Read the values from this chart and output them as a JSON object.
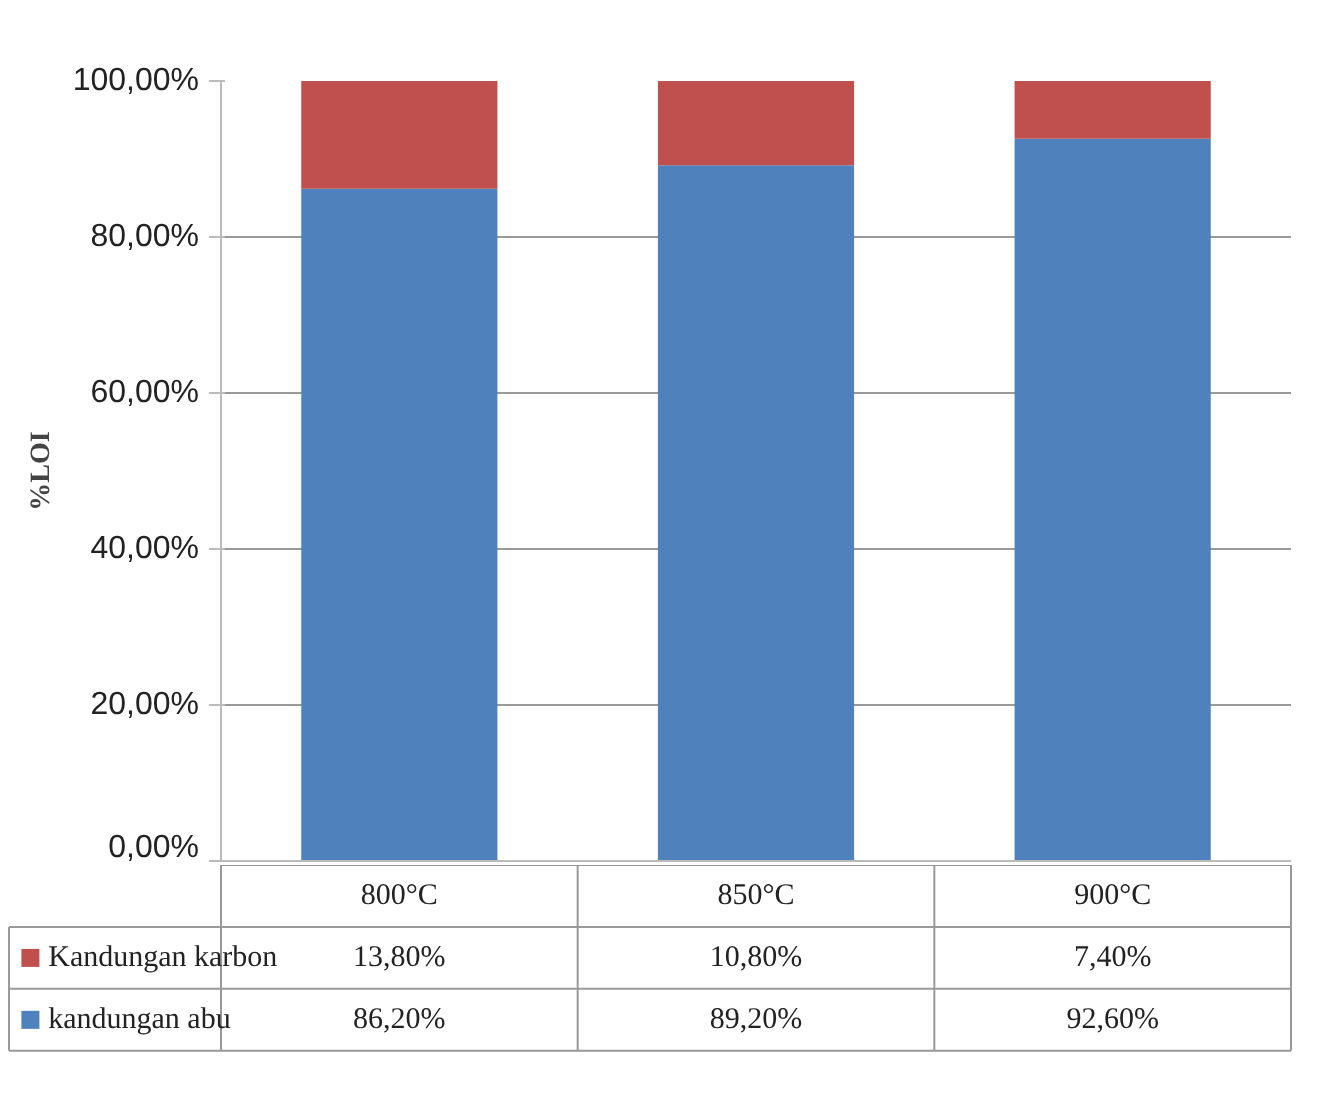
{
  "chart_data": {
    "type": "bar",
    "stacked": true,
    "ylabel": "%LOI",
    "categories": [
      "800°C",
      "850°C",
      "900°C"
    ],
    "series": [
      {
        "name": "kandungan abu",
        "color": "#4f81bd",
        "values": [
          86.2,
          89.2,
          92.6
        ],
        "value_labels": [
          "86,20%",
          "89,20%",
          "92,60%"
        ]
      },
      {
        "name": "Kandungan karbon",
        "color": "#c0504d",
        "values": [
          13.8,
          10.8,
          7.4
        ],
        "value_labels": [
          "13,80%",
          "10,80%",
          "7,40%"
        ]
      }
    ],
    "ylim": [
      0,
      100
    ],
    "yticks": [
      {
        "value": 0,
        "label": "0,00%"
      },
      {
        "value": 20,
        "label": "20,00%"
      },
      {
        "value": 40,
        "label": "40,00%"
      },
      {
        "value": 60,
        "label": "60,00%"
      },
      {
        "value": 80,
        "label": "80,00%"
      },
      {
        "value": 100,
        "label": "100,00%"
      }
    ],
    "grid": "y",
    "legend": "bottom"
  }
}
